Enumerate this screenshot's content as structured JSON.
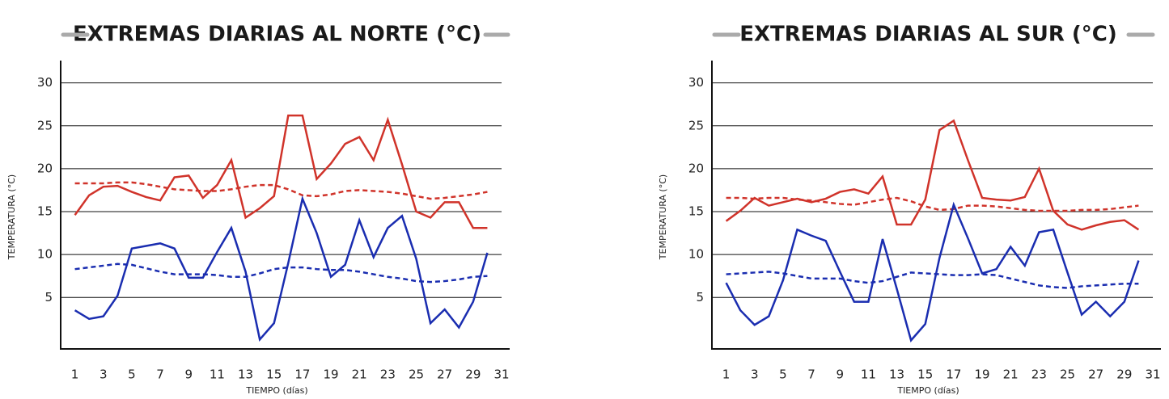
{
  "chart_data": [
    {
      "type": "line",
      "title": "EXTREMAS DIARIAS AL NORTE (°C)",
      "xlabel": "TIEMPO (días)",
      "ylabel": "TEMPERATURA (°C)",
      "x": [
        1,
        2,
        3,
        4,
        5,
        6,
        7,
        8,
        9,
        10,
        11,
        12,
        13,
        14,
        15,
        16,
        17,
        18,
        19,
        20,
        21,
        22,
        23,
        24,
        25,
        26,
        27,
        28,
        29,
        30
      ],
      "xlim": [
        0,
        31
      ],
      "xticks": [
        1,
        3,
        5,
        7,
        9,
        11,
        13,
        15,
        17,
        19,
        21,
        23,
        25,
        27,
        29,
        31
      ],
      "ylim": [
        -1,
        32.6
      ],
      "yticks": [
        5,
        10,
        15,
        20,
        25,
        30
      ],
      "grid": true,
      "series": [
        {
          "color": "#d0332a",
          "style": "solid",
          "values": [
            14.6,
            16.9,
            17.9,
            18.0,
            17.3,
            16.7,
            16.3,
            19.0,
            19.2,
            16.6,
            18.1,
            21.0,
            14.3,
            15.4,
            16.8,
            26.2,
            26.2,
            18.8,
            20.6,
            22.9,
            23.7,
            21.0,
            25.7,
            20.5,
            15.0,
            14.3,
            16.1,
            16.1,
            13.1,
            13.1
          ]
        },
        {
          "color": "#d0332a",
          "style": "dashed",
          "values": [
            18.3,
            18.3,
            18.3,
            18.4,
            18.4,
            18.2,
            17.9,
            17.6,
            17.5,
            17.4,
            17.4,
            17.6,
            17.9,
            18.1,
            18.1,
            17.6,
            16.9,
            16.8,
            17.0,
            17.4,
            17.5,
            17.4,
            17.3,
            17.1,
            16.8,
            16.5,
            16.6,
            16.8,
            17.0,
            17.3
          ]
        },
        {
          "color": "#1a2db0",
          "style": "solid",
          "values": [
            3.5,
            2.5,
            2.8,
            5.2,
            10.7,
            11.0,
            11.3,
            10.7,
            7.3,
            7.3,
            10.3,
            13.1,
            8.0,
            0.1,
            2.0,
            9.0,
            16.5,
            12.5,
            7.4,
            8.8,
            14.0,
            9.7,
            13.1,
            14.5,
            9.5,
            2.0,
            3.6,
            1.5,
            4.5,
            10.2
          ]
        },
        {
          "color": "#1a2db0",
          "style": "dashed",
          "values": [
            8.3,
            8.5,
            8.7,
            8.9,
            8.8,
            8.4,
            8.0,
            7.7,
            7.7,
            7.7,
            7.6,
            7.4,
            7.4,
            7.8,
            8.3,
            8.5,
            8.5,
            8.3,
            8.2,
            8.2,
            8.0,
            7.7,
            7.4,
            7.2,
            6.9,
            6.8,
            6.9,
            7.1,
            7.4,
            7.5
          ]
        }
      ]
    },
    {
      "type": "line",
      "title": "EXTREMAS DIARIAS AL SUR (°C)",
      "xlabel": "TIEMPO (días)",
      "ylabel": "TEMPERATURA (°C)",
      "x": [
        1,
        2,
        3,
        4,
        5,
        6,
        7,
        8,
        9,
        10,
        11,
        12,
        13,
        14,
        15,
        16,
        17,
        18,
        19,
        20,
        21,
        22,
        23,
        24,
        25,
        26,
        27,
        28,
        29,
        30
      ],
      "xlim": [
        0,
        31
      ],
      "xticks": [
        1,
        3,
        5,
        7,
        9,
        11,
        13,
        15,
        17,
        19,
        21,
        23,
        25,
        27,
        29,
        31
      ],
      "ylim": [
        -1,
        32.6
      ],
      "yticks": [
        5,
        10,
        15,
        20,
        25,
        30
      ],
      "grid": true,
      "series": [
        {
          "color": "#d0332a",
          "style": "solid",
          "values": [
            13.9,
            15.1,
            16.6,
            15.7,
            16.1,
            16.5,
            16.1,
            16.5,
            17.3,
            17.6,
            17.1,
            19.1,
            13.5,
            13.5,
            16.4,
            24.5,
            25.6,
            21.0,
            16.6,
            16.4,
            16.3,
            16.7,
            20.0,
            15.1,
            13.5,
            12.9,
            13.4,
            13.8,
            14.0,
            12.9
          ]
        },
        {
          "color": "#d0332a",
          "style": "dashed",
          "values": [
            16.6,
            16.6,
            16.5,
            16.6,
            16.6,
            16.4,
            16.3,
            16.1,
            15.9,
            15.8,
            16.1,
            16.4,
            16.6,
            16.2,
            15.6,
            15.2,
            15.3,
            15.7,
            15.7,
            15.6,
            15.4,
            15.2,
            15.1,
            15.1,
            15.1,
            15.2,
            15.2,
            15.3,
            15.5,
            15.7
          ]
        },
        {
          "color": "#1a2db0",
          "style": "solid",
          "values": [
            6.7,
            3.5,
            1.8,
            2.8,
            7.0,
            12.9,
            12.2,
            11.6,
            8.0,
            4.5,
            4.5,
            11.8,
            6.0,
            0.0,
            1.9,
            9.6,
            15.8,
            11.9,
            7.8,
            8.3,
            10.9,
            8.7,
            12.6,
            12.9,
            7.9,
            3.0,
            4.5,
            2.8,
            4.5,
            9.3
          ]
        },
        {
          "color": "#1a2db0",
          "style": "dashed",
          "values": [
            7.7,
            7.8,
            7.9,
            8.0,
            7.8,
            7.5,
            7.2,
            7.2,
            7.2,
            6.9,
            6.7,
            6.9,
            7.4,
            7.9,
            7.8,
            7.7,
            7.6,
            7.6,
            7.7,
            7.6,
            7.2,
            6.8,
            6.4,
            6.2,
            6.1,
            6.3,
            6.4,
            6.5,
            6.6,
            6.6
          ]
        }
      ]
    }
  ]
}
